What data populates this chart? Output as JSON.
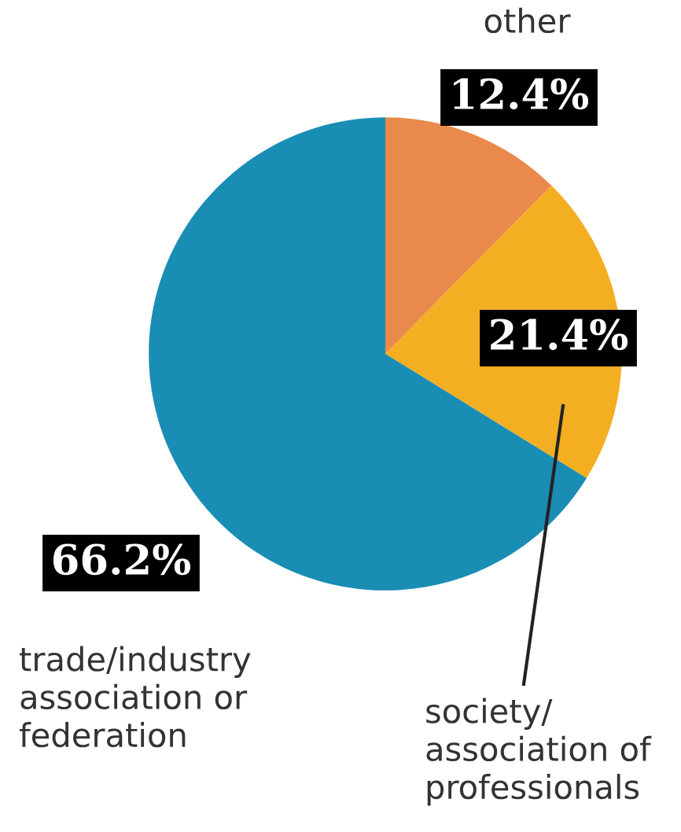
{
  "chart_data": {
    "type": "pie",
    "categories": [
      "other",
      "society/\nassociation of\nprofessionals",
      "trade/industry\nassociation or\nfederation"
    ],
    "values": [
      12.4,
      21.4,
      66.2
    ],
    "colors": [
      "#e98a4c",
      "#f4ae22",
      "#1a8db4"
    ],
    "value_labels": [
      "12.4%",
      "21.4%",
      "66.2%"
    ],
    "legend": false
  }
}
